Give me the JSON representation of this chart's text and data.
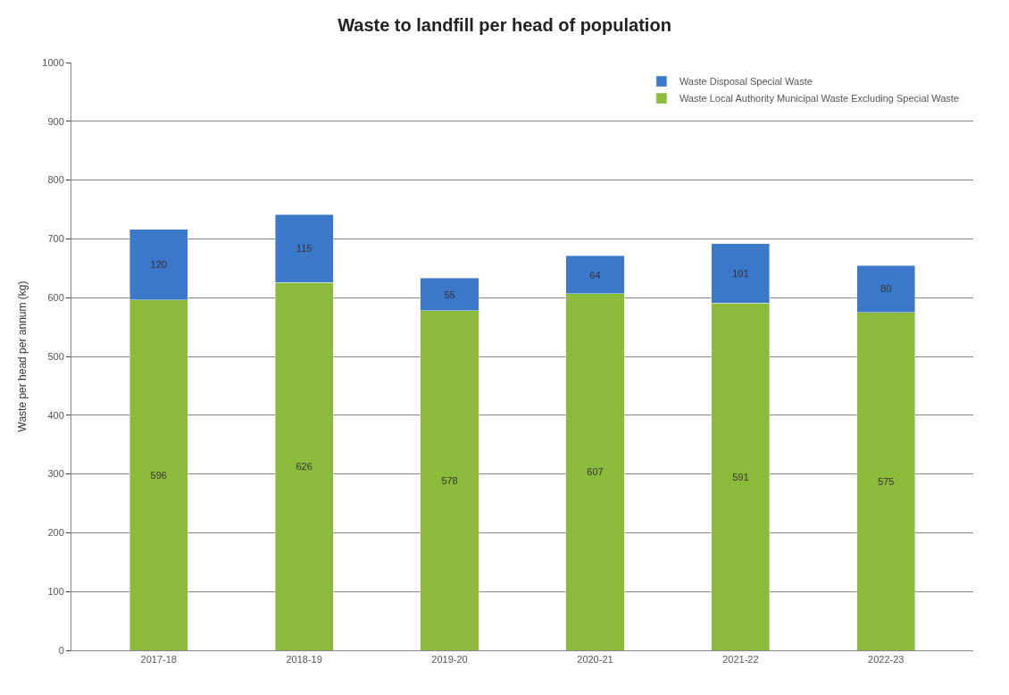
{
  "chart_data": {
    "type": "bar",
    "stacked": true,
    "title": "Waste to landfill per head of population",
    "ylabel": "Waste per head per annum (kg)",
    "categories": [
      "2017-18",
      "2018-19",
      "2019-20",
      "2020-21",
      "2021-22",
      "2022-23"
    ],
    "series": [
      {
        "name": "Waste Local Authority Municipal Waste Excluding Special Waste",
        "color": "#8cbb3c",
        "values": [
          596,
          626,
          578,
          607,
          591,
          575
        ]
      },
      {
        "name": "Waste Disposal Special Waste",
        "color": "#3b78c9",
        "values": [
          120,
          115,
          55,
          64,
          101,
          80
        ]
      }
    ],
    "ylim": [
      0,
      1000
    ],
    "yticks": [
      0,
      100,
      200,
      300,
      400,
      500,
      600,
      700,
      800,
      900,
      1000
    ],
    "grid": "y",
    "legend": "top right",
    "data_labels": true
  }
}
